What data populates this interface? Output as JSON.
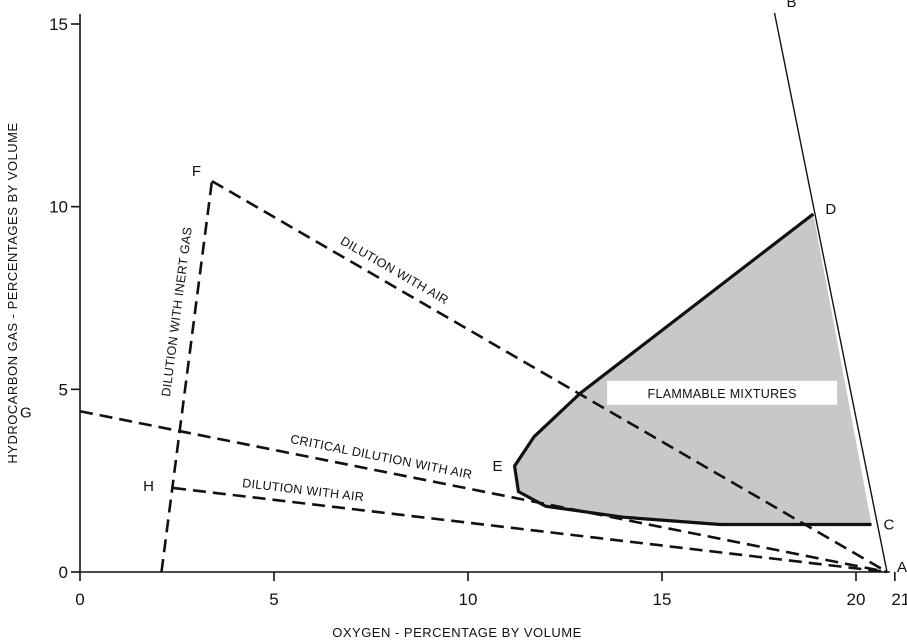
{
  "chart_data": {
    "type": "line",
    "title": "",
    "xlabel": "OXYGEN - PERCENTAGE BY VOLUME",
    "ylabel": "HYDROCARBON GAS - PERCENTAGES BY VOLUME",
    "xlim": [
      0,
      21
    ],
    "ylim": [
      0,
      15
    ],
    "x_ticks": [
      0,
      5,
      10,
      15,
      20,
      21
    ],
    "y_ticks": [
      0,
      5,
      10,
      15
    ],
    "grid": false,
    "flammable_region": {
      "label": "FLAMMABLE MIXTURES",
      "boundary": [
        [
          18.9,
          9.8
        ],
        [
          12.9,
          4.9
        ],
        [
          11.7,
          3.7
        ],
        [
          11.2,
          2.9
        ],
        [
          11.3,
          2.2
        ],
        [
          12.0,
          1.8
        ],
        [
          14.0,
          1.5
        ],
        [
          16.5,
          1.3
        ],
        [
          20.4,
          1.3
        ]
      ],
      "fill": "#c8c8c8"
    },
    "points": [
      {
        "label": "A",
        "x": 20.8,
        "y": 0.0
      },
      {
        "label": "B",
        "x": 17.9,
        "y": 15.3
      },
      {
        "label": "C",
        "x": 20.4,
        "y": 1.3
      },
      {
        "label": "D",
        "x": 18.9,
        "y": 9.8
      },
      {
        "label": "E",
        "x": 11.2,
        "y": 2.9
      },
      {
        "label": "F",
        "x": 3.4,
        "y": 10.7
      },
      {
        "label": "G",
        "x": 0.0,
        "y": 4.4
      },
      {
        "label": "H",
        "x": 2.4,
        "y": 2.3
      }
    ],
    "lines": [
      {
        "from": "B",
        "to": "A",
        "style": "solid"
      },
      {
        "from": "F",
        "to": "A",
        "style": "dashed",
        "label": "DILUTION WITH AIR"
      },
      {
        "from": "G",
        "to": "A",
        "style": "dashed",
        "label": "CRITICAL DILUTION WITH AIR"
      },
      {
        "from": "H",
        "to": "A",
        "style": "dashed",
        "label": "DILUTION WITH AIR"
      },
      {
        "from": [
          2.1,
          0.0
        ],
        "to": "F",
        "style": "dashed",
        "label": "DILUTION WITH INERT GAS"
      }
    ]
  }
}
